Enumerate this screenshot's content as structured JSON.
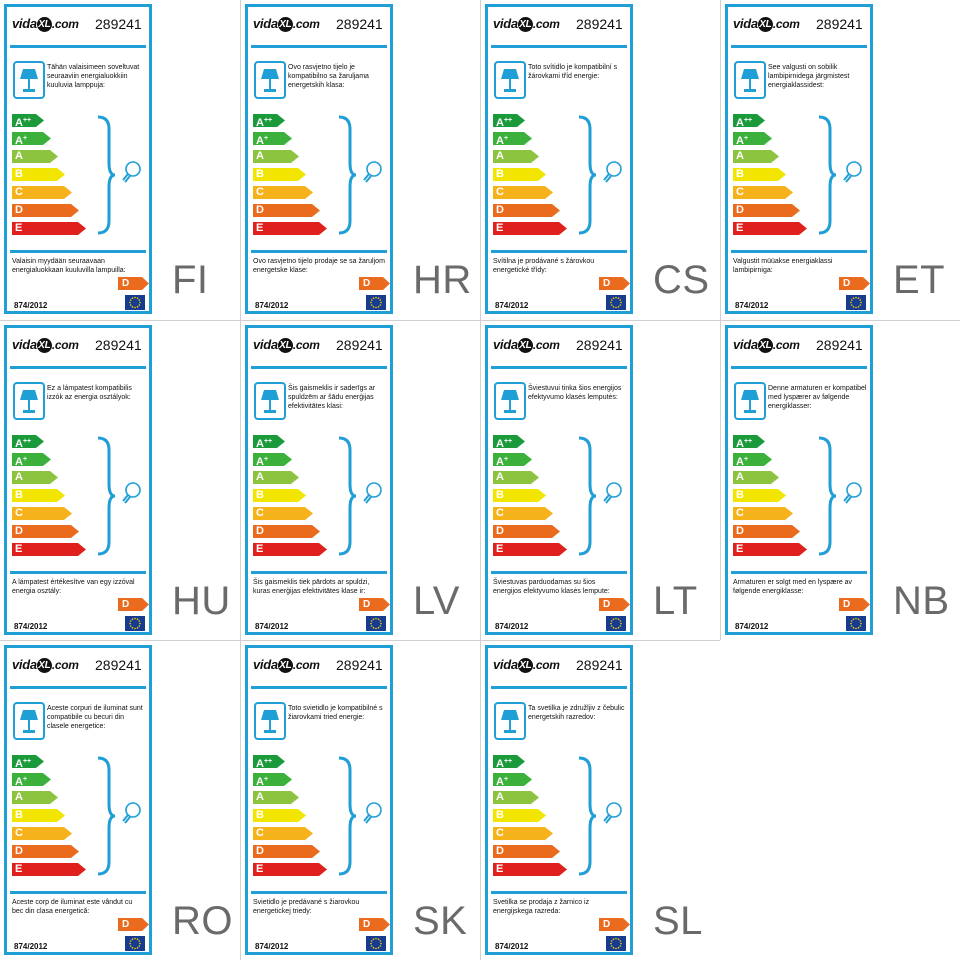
{
  "brand": {
    "logo_text": "vidaXL.com",
    "logo_prefix": "vida",
    "logo_mark": "XL",
    "logo_suffix": ".com"
  },
  "product_code": "289241",
  "regulation": "874/2012",
  "energy_classes": [
    "A++",
    "A+",
    "A",
    "B",
    "C",
    "D",
    "E"
  ],
  "class_colors": [
    "#1a9a3a",
    "#3bb03a",
    "#8dc43f",
    "#f2e600",
    "#f6b21b",
    "#ea6a1e",
    "#e0201d"
  ],
  "rating": {
    "value": "D",
    "color": "#ea6a1e"
  },
  "accent_color": "#1f9fd5",
  "icons": [
    "lamp-icon",
    "bulb-icon",
    "brace-icon",
    "eu-flag-icon"
  ],
  "labels": [
    {
      "lang": "FI",
      "compatible_text": "Tähän valaisimeen soveltuvat seuraaviin energialuokkiin kuuluvia lamppuja:",
      "sold_with_text": "Valaisin myydään seuraavaan energialuokkaan kuuluvilla lampuilla:"
    },
    {
      "lang": "HR",
      "compatible_text": "Ovo rasvjetno tijelo je kompatibilno sa žaruljama energetskih klasa:",
      "sold_with_text": "Ovo rasvjetno tijelo prodaje se sa žaruljom energetske klase:"
    },
    {
      "lang": "CS",
      "compatible_text": "Toto svítidlo je kompatibilní s žárovkami tříd energie:",
      "sold_with_text": "Svítilna je prodávané s žárovkou energetické třídy:"
    },
    {
      "lang": "ET",
      "compatible_text": "See valgusti on sobilik lambipirnidega järgmistest energiaklassidest:",
      "sold_with_text": "Valgustit müüakse energiaklassi lambipirniga:"
    },
    {
      "lang": "HU",
      "compatible_text": "Ez a lámpatest kompatibilis izzók az energia osztályok:",
      "sold_with_text": "A lámpatest értékesítve van egy izzóval energia osztály:"
    },
    {
      "lang": "LV",
      "compatible_text": "Šis gaismeklis ir saderīgs ar spuldzēm ar šādu enerģijas efektivitātes klasi:",
      "sold_with_text": "Šis gaismeklis tiek pārdots ar spuldzi, kuras enerģijas efektivitātes klase ir:"
    },
    {
      "lang": "LT",
      "compatible_text": "Šviestuvui tinka šios energijos efektyvumo klasės lemputės:",
      "sold_with_text": "Šviestuvas parduodamas su šios energijos efektyvumo klasės lempute:"
    },
    {
      "lang": "NB",
      "compatible_text": "Denne armaturen er kompatibel med lyspærer av følgende energiklasser:",
      "sold_with_text": "Armaturen er solgt med en lyspære av følgende energiklasse:"
    },
    {
      "lang": "RO",
      "compatible_text": "Aceste corpuri de iluminat sunt compatibile cu becuri din clasele energetice:",
      "sold_with_text": "Aceste corp de iluminat este vândut cu bec din clasa energetică:"
    },
    {
      "lang": "SK",
      "compatible_text": "Toto svietidlo je kompatibilné s žiarovkami tried energie:",
      "sold_with_text": "Svietidlo je predávané s žiarovkou energetickej triedy:"
    },
    {
      "lang": "SL",
      "compatible_text": "Ta svetilka je združljiv z čebulic energetskih razredov:",
      "sold_with_text": "Svetilka se prodaja z žarnico iz energijskega razreda:"
    }
  ]
}
